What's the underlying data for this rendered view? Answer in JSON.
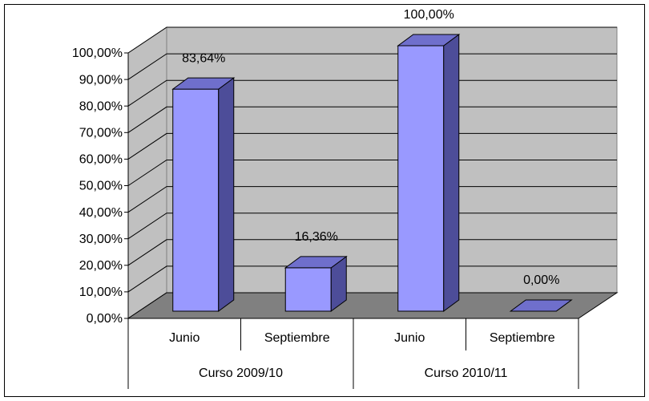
{
  "chart_data": {
    "type": "bar3d",
    "categories": [
      "Junio",
      "Septiembre",
      "Junio",
      "Septiembre"
    ],
    "groups": [
      "Curso 2009/10",
      "Curso 2010/11"
    ],
    "values": [
      83.64,
      16.36,
      100,
      0
    ],
    "value_labels": [
      "83,64%",
      "16,36%",
      "100,00%",
      "0,00%"
    ],
    "color": "#9999ff",
    "ylim": [
      0,
      100
    ],
    "yticks": [
      {
        "value": 0,
        "label": "0,00%"
      },
      {
        "value": 10,
        "label": "10,00%"
      },
      {
        "value": 20,
        "label": "20,00%"
      },
      {
        "value": 30,
        "label": "30,00%"
      },
      {
        "value": 40,
        "label": "40,00%"
      },
      {
        "value": 50,
        "label": "50,00%"
      },
      {
        "value": 60,
        "label": "60,00%"
      },
      {
        "value": 70,
        "label": "70,00%"
      },
      {
        "value": 80,
        "label": "80,00%"
      },
      {
        "value": 90,
        "label": "90,00%"
      },
      {
        "value": 100,
        "label": "100,00%"
      }
    ],
    "grid": true
  }
}
